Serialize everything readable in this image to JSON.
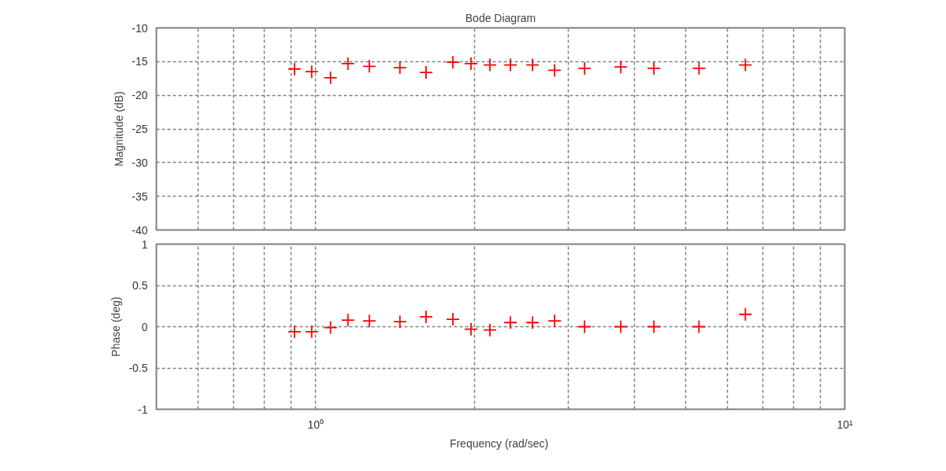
{
  "chart_data": [
    {
      "type": "scatter",
      "title": "Bode Diagram",
      "ylabel": "Magnitude (dB)",
      "log": "x",
      "grid": true,
      "marker": "cross",
      "tick_labels": "y",
      "xlim": [
        0.5,
        10
      ],
      "ylim": [
        -40,
        -10
      ],
      "yticks": [
        -40,
        -35,
        -30,
        -25,
        -20,
        -15,
        -10
      ],
      "xticks": [
        {
          "value": 0.6,
          "label": null
        },
        {
          "value": 0.7,
          "label": null
        },
        {
          "value": 0.8,
          "label": null
        },
        {
          "value": 0.9,
          "label": null
        },
        {
          "value": 1,
          "label": null
        },
        {
          "value": 2,
          "label": null
        },
        {
          "value": 3,
          "label": null
        },
        {
          "value": 4,
          "label": null
        },
        {
          "value": 5,
          "label": null
        },
        {
          "value": 6,
          "label": null
        },
        {
          "value": 7,
          "label": null
        },
        {
          "value": 8,
          "label": null
        },
        {
          "value": 9,
          "label": null
        },
        {
          "value": 10,
          "label": null
        }
      ],
      "x": [
        0.912,
        0.983,
        1.067,
        1.151,
        1.263,
        1.443,
        1.617,
        1.817,
        1.966,
        2.135,
        2.334,
        2.57,
        2.829,
        3.223,
        3.773,
        4.358,
        5.302,
        6.489
      ],
      "color": "#ff0000",
      "values": [
        -16.1,
        -16.5,
        -17.4,
        -15.3,
        -15.7,
        -15.9,
        -16.6,
        -15.1,
        -15.3,
        -15.5,
        -15.5,
        -15.5,
        -16.3,
        -16.0,
        -15.8,
        -16.0,
        -16.0,
        -15.5
      ]
    },
    {
      "type": "scatter",
      "ylabel": "Phase (deg)",
      "xlabel": "Frequency  (rad/sec)",
      "log": "x",
      "grid": true,
      "marker": "cross",
      "xlim": [
        0.5,
        10
      ],
      "ylim": [
        -1,
        1
      ],
      "yticks": [
        -1,
        -0.5,
        0,
        0.5,
        1
      ],
      "xticks": [
        {
          "value": 0.6,
          "label": null
        },
        {
          "value": 0.7,
          "label": null
        },
        {
          "value": 0.8,
          "label": null
        },
        {
          "value": 0.9,
          "label": null
        },
        {
          "value": 1,
          "label": "10⁰"
        },
        {
          "value": 2,
          "label": null
        },
        {
          "value": 3,
          "label": null
        },
        {
          "value": 4,
          "label": null
        },
        {
          "value": 5,
          "label": null
        },
        {
          "value": 6,
          "label": null
        },
        {
          "value": 7,
          "label": null
        },
        {
          "value": 8,
          "label": null
        },
        {
          "value": 9,
          "label": null
        },
        {
          "value": 10,
          "label": "10¹"
        }
      ],
      "x": [
        0.912,
        0.983,
        1.067,
        1.151,
        1.263,
        1.443,
        1.617,
        1.817,
        1.966,
        2.135,
        2.334,
        2.57,
        2.829,
        3.223,
        3.773,
        4.358,
        5.302,
        6.489
      ],
      "color": "#ff0000",
      "values": [
        -0.06,
        -0.06,
        -0.01,
        0.08,
        0.07,
        0.06,
        0.12,
        0.09,
        -0.03,
        -0.04,
        0.05,
        0.05,
        0.07,
        0.0,
        0.0,
        0.0,
        0.0,
        0.15
      ]
    }
  ]
}
